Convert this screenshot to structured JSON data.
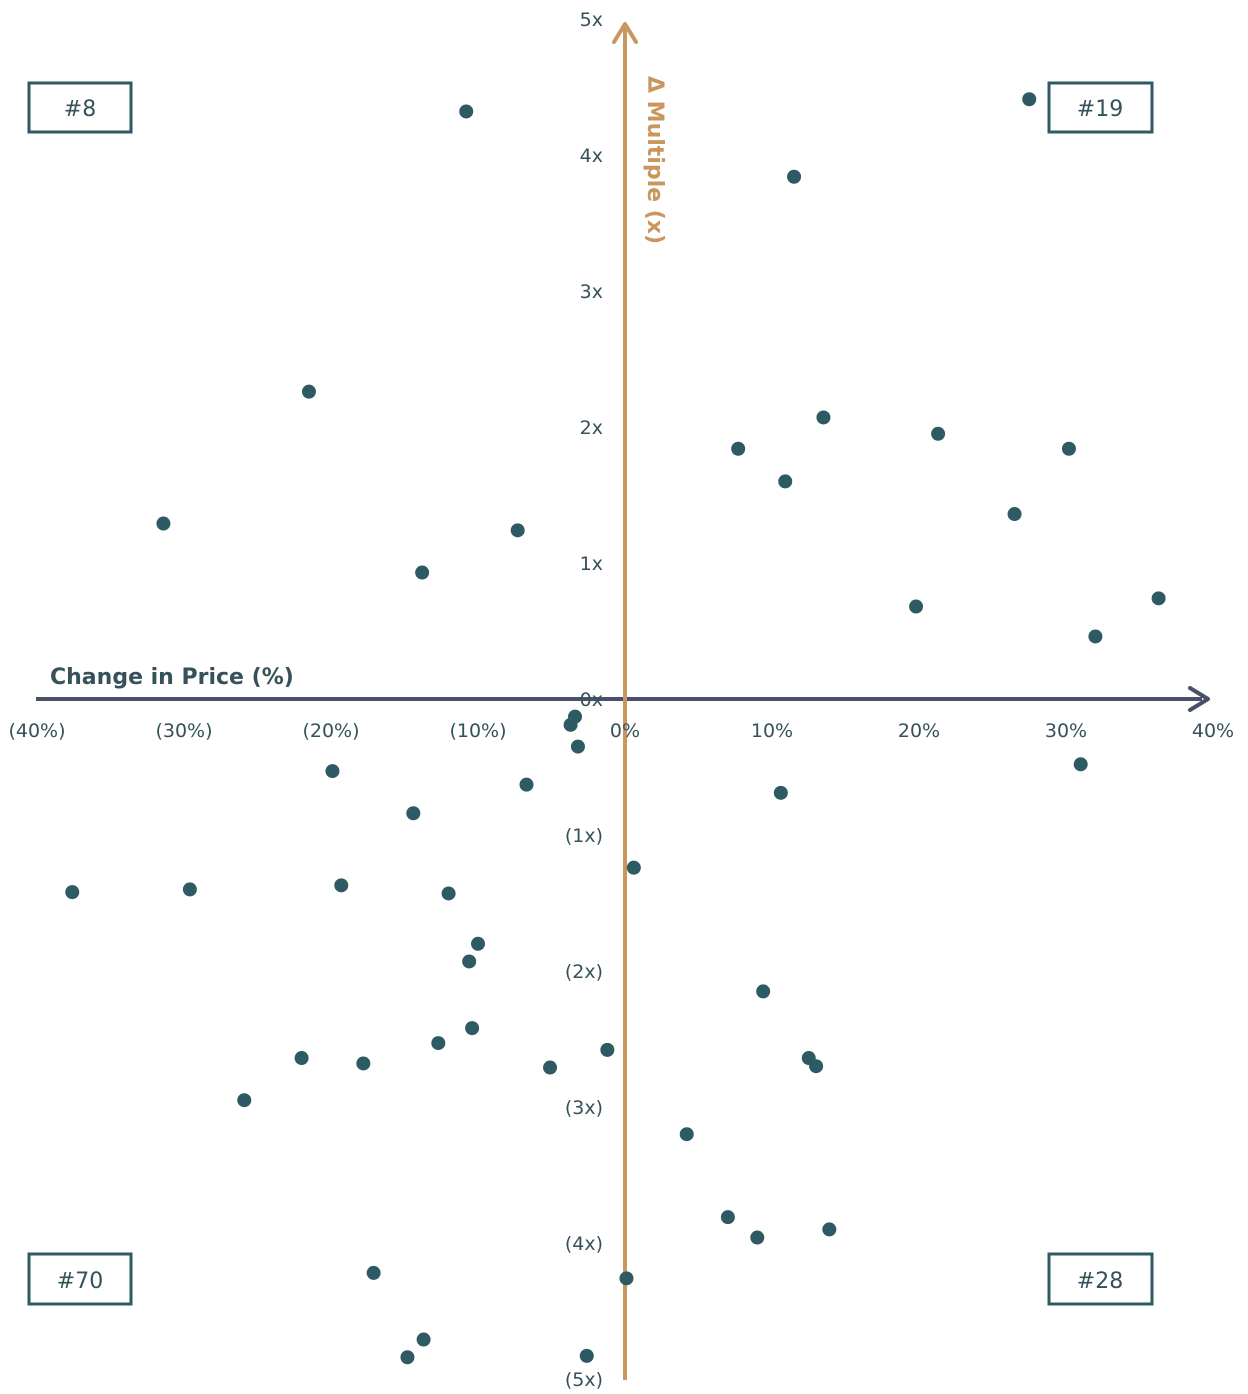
{
  "chart_data": {
    "type": "scatter",
    "xlabel": "Change in Price (%)",
    "ylabel": "Δ Multiple (x)",
    "xlim": [
      -40,
      40
    ],
    "ylim": [
      -5,
      5
    ],
    "x_ticks": [
      -40,
      -30,
      -20,
      -10,
      0,
      10,
      20,
      30,
      40
    ],
    "x_tick_labels": [
      "(40%)",
      "(30%)",
      "(20%)",
      "(10%)",
      "0%",
      "10%",
      "20%",
      "30%",
      "40%"
    ],
    "y_ticks": [
      5,
      4,
      3,
      2,
      1,
      0,
      -1,
      -2,
      -3,
      -4,
      -5
    ],
    "y_tick_labels": [
      "5x",
      "4x",
      "3x",
      "2x",
      "1x",
      "0x",
      "(1x)",
      "(2x)",
      "(3x)",
      "(4x)",
      "(5x)"
    ],
    "grid": false,
    "quadrant_labels": {
      "top_left": "#8",
      "top_right": "#19",
      "bottom_left": "#70",
      "bottom_right": "#28"
    },
    "colors": {
      "points": "#2e5a63",
      "x_axis": "#4a4f6a",
      "y_axis": "#c9975d",
      "text": "#35525a"
    },
    "series": [
      {
        "points": [
          [
            -10.8,
            4.32
          ],
          [
            27.5,
            4.41
          ],
          [
            11.5,
            3.84
          ],
          [
            -21.5,
            2.26
          ],
          [
            13.5,
            2.07
          ],
          [
            21.3,
            1.95
          ],
          [
            30.2,
            1.84
          ],
          [
            7.7,
            1.84
          ],
          [
            10.9,
            1.6
          ],
          [
            -31.4,
            1.29
          ],
          [
            -7.3,
            1.24
          ],
          [
            26.5,
            1.36
          ],
          [
            -13.8,
            0.93
          ],
          [
            19.8,
            0.68
          ],
          [
            36.3,
            0.74
          ],
          [
            32.0,
            0.46
          ],
          [
            -3.4,
            -0.13
          ],
          [
            -3.7,
            -0.19
          ],
          [
            -3.2,
            -0.35
          ],
          [
            -19.9,
            -0.53
          ],
          [
            -6.7,
            -0.63
          ],
          [
            31.0,
            -0.48
          ],
          [
            10.6,
            -0.69
          ],
          [
            -14.4,
            -0.84
          ],
          [
            0.6,
            -1.24
          ],
          [
            -37.6,
            -1.42
          ],
          [
            -29.6,
            -1.4
          ],
          [
            -19.3,
            -1.37
          ],
          [
            -12.0,
            -1.43
          ],
          [
            -10.0,
            -1.8
          ],
          [
            -10.6,
            -1.93
          ],
          [
            9.4,
            -2.15
          ],
          [
            -10.4,
            -2.42
          ],
          [
            -12.7,
            -2.53
          ],
          [
            -22.0,
            -2.64
          ],
          [
            -17.8,
            -2.68
          ],
          [
            -5.1,
            -2.71
          ],
          [
            -1.2,
            -2.58
          ],
          [
            12.5,
            -2.64
          ],
          [
            13.0,
            -2.7
          ],
          [
            -25.9,
            -2.95
          ],
          [
            4.2,
            -3.2
          ],
          [
            7.0,
            -3.81
          ],
          [
            9.0,
            -3.96
          ],
          [
            13.9,
            -3.9
          ],
          [
            0.1,
            -4.26
          ],
          [
            -17.1,
            -4.22
          ],
          [
            -13.7,
            -4.71
          ],
          [
            -14.8,
            -4.84
          ],
          [
            -2.6,
            -4.83
          ]
        ]
      }
    ]
  }
}
